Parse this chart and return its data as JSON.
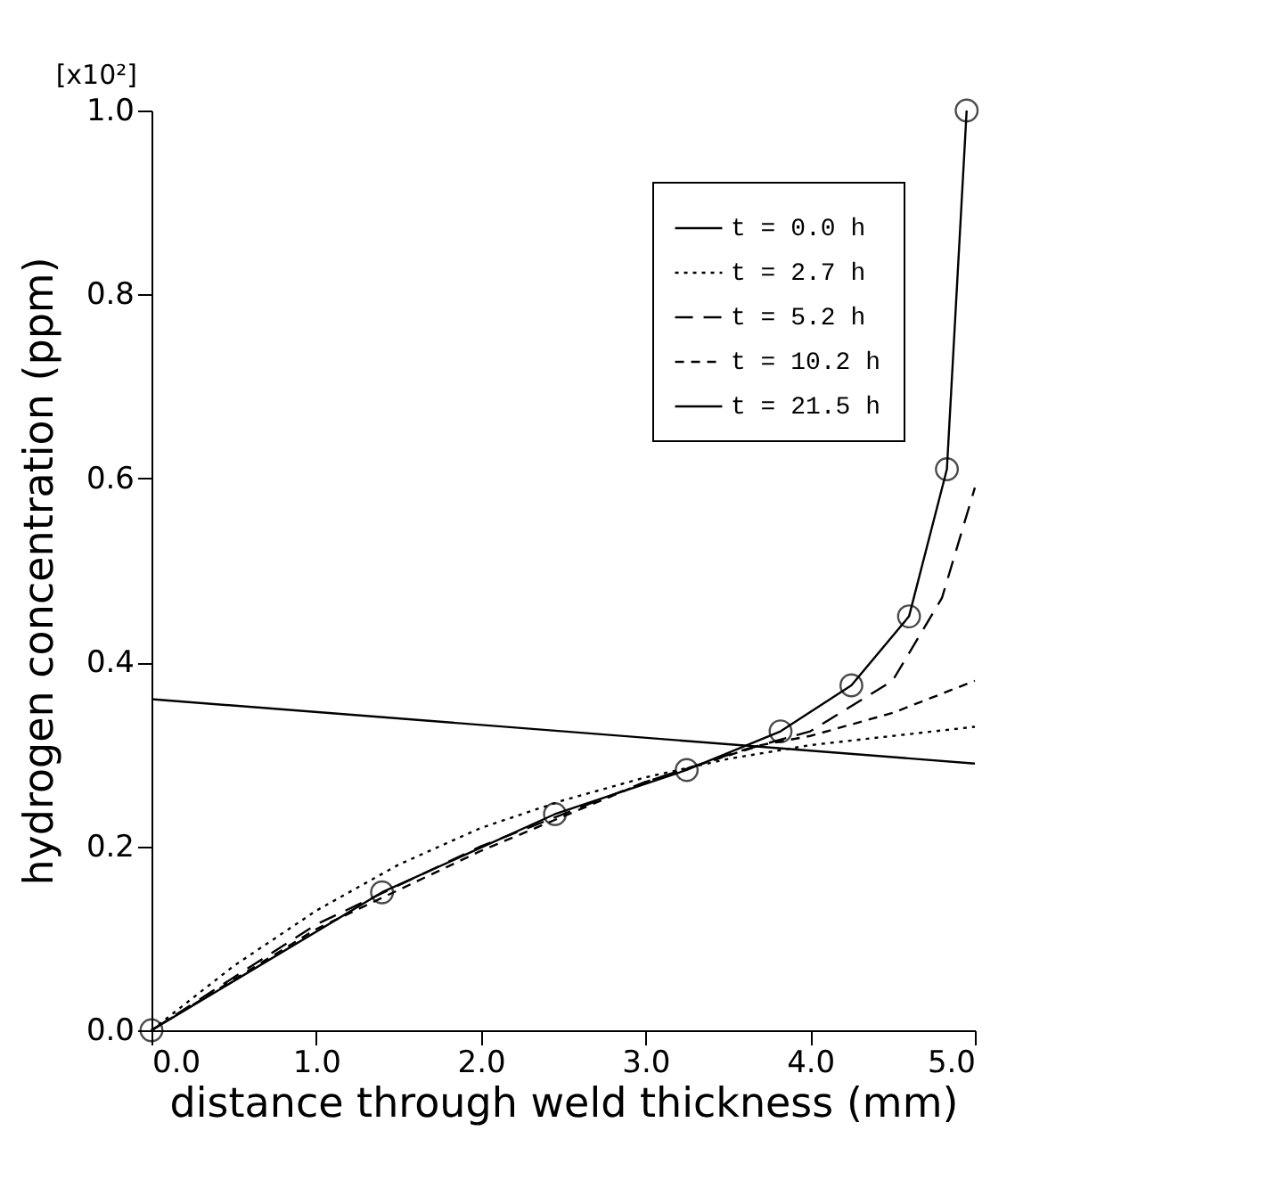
{
  "chart_data": {
    "type": "line",
    "xlabel": "distance through weld thickness  (mm)",
    "ylabel": "hydrogen concentration  (ppm)",
    "annotations": [
      "[x10²]"
    ],
    "xlim": [
      0,
      5
    ],
    "ylim": [
      0,
      1
    ],
    "xticks": [
      {
        "value": 0,
        "label": "0.0"
      },
      {
        "value": 1,
        "label": "1.0"
      },
      {
        "value": 2,
        "label": "2.0"
      },
      {
        "value": 3,
        "label": "3.0"
      },
      {
        "value": 4,
        "label": "4.0"
      },
      {
        "value": 5,
        "label": "5.0"
      }
    ],
    "yticks": [
      {
        "value": 0,
        "label": "0.0"
      },
      0.2,
      0.4,
      0.6,
      0.8,
      {
        "value": 1,
        "label": "1.0"
      }
    ],
    "grid": false,
    "legend": "top right",
    "series": [
      {
        "name": "t =  0.0 h",
        "color": "#000000",
        "line_style": "solid",
        "marker": "none",
        "x": [
          0,
          5
        ],
        "values": [
          0.36,
          0.29
        ]
      },
      {
        "name": "t =  2.7 h",
        "color": "#000000",
        "line_style": "dotted",
        "marker": "none",
        "x": [
          0,
          0.5,
          1,
          1.5,
          2,
          2.5,
          3,
          3.5,
          4,
          4.5,
          5
        ],
        "values": [
          0,
          0.07,
          0.13,
          0.18,
          0.22,
          0.25,
          0.275,
          0.295,
          0.31,
          0.32,
          0.33
        ]
      },
      {
        "name": "t =  5.2 h",
        "color": "#000000",
        "line_style": "dashed",
        "marker": "none",
        "x": [
          0,
          1,
          2,
          3,
          3.6,
          4,
          4.5,
          4.8,
          5
        ],
        "values": [
          0,
          0.115,
          0.2,
          0.27,
          0.305,
          0.325,
          0.38,
          0.47,
          0.59
        ]
      },
      {
        "name": "t = 10.2 h",
        "color": "#000000",
        "line_style": "dashed",
        "marker": "none",
        "x": [
          0,
          1,
          2,
          3,
          3.7,
          4,
          4.5,
          5
        ],
        "values": [
          0,
          0.11,
          0.195,
          0.27,
          0.31,
          0.32,
          0.345,
          0.38
        ]
      },
      {
        "name": "t = 21.5 h",
        "color": "#000000",
        "line_style": "solid",
        "marker": "circle",
        "x": [
          0,
          1.4,
          2.45,
          3.25,
          3.82,
          4.25,
          4.6,
          4.83,
          4.95
        ],
        "values": [
          0,
          0.15,
          0.235,
          0.283,
          0.325,
          0.375,
          0.45,
          0.61,
          1.0
        ]
      }
    ]
  }
}
